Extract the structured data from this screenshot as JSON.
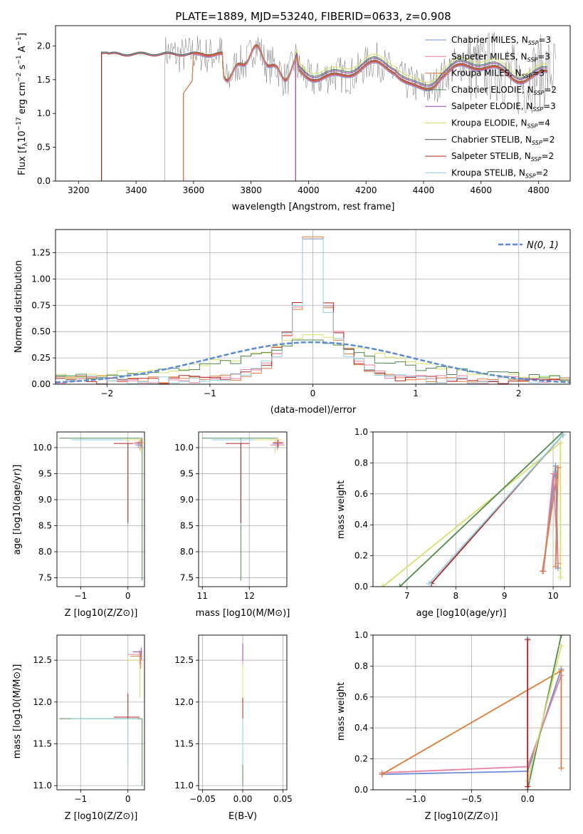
{
  "title": "PLATE=1889, MJD=53240, FIBERID=0633, z=0.908",
  "colors": {
    "chabrier_miles": "#6f8fd6",
    "salpeter_miles": "#e87fa0",
    "kroupa_miles": "#e07b39",
    "chabrier_elodie": "#4f8a4f",
    "salpeter_elodie": "#9b3fb5",
    "kroupa_elodie": "#d9e06a",
    "chabrier_stelib": "#555555",
    "salpeter_stelib": "#b22222",
    "kroupa_stelib": "#8fd0e0",
    "normal": "#5b8bd9",
    "grid": "#b0b0b0"
  },
  "chart_data": [
    {
      "id": "spectrum",
      "type": "line",
      "xlabel": "wavelength [Angstrom, rest frame]",
      "ylabel": "Flux [f_λ 10^-17 erg cm^-2 s^-1 A^-1]",
      "xlim": [
        3120,
        4910
      ],
      "ylim": [
        0,
        2.3
      ],
      "xticks": [
        "3200",
        "3400",
        "3600",
        "3800",
        "4000",
        "4200",
        "4400",
        "4600",
        "4800"
      ],
      "yticks": [
        "0.0",
        "0.5",
        "1.0",
        "1.5",
        "2.0"
      ],
      "grid": false,
      "legend_position": "right",
      "legend": [
        {
          "label": "Chabrier MILES, N",
          "sub": "SSP",
          "value": "=3",
          "color_key": "chabrier_miles"
        },
        {
          "label": "Salpeter MILES, N",
          "sub": "SSP",
          "value": "=3",
          "color_key": "salpeter_miles"
        },
        {
          "label": "Kroupa MILES, N",
          "sub": "SSP",
          "value": "=3",
          "color_key": "kroupa_miles"
        },
        {
          "label": "Chabrier ELODIE, N",
          "sub": "SSP",
          "value": "=2",
          "color_key": "chabrier_elodie"
        },
        {
          "label": "Salpeter ELODIE, N",
          "sub": "SSP",
          "value": "=3",
          "color_key": "salpeter_elodie"
        },
        {
          "label": "Kroupa ELODIE, N",
          "sub": "SSP",
          "value": "=4",
          "color_key": "kroupa_elodie"
        },
        {
          "label": "Chabrier STELIB, N",
          "sub": "SSP",
          "value": "=2",
          "color_key": "chabrier_stelib"
        },
        {
          "label": "Salpeter STELIB, N",
          "sub": "SSP",
          "value": "=2",
          "color_key": "salpeter_stelib"
        },
        {
          "label": "Kroupa STELIB, N",
          "sub": "SSP",
          "value": "=2",
          "color_key": "kroupa_stelib"
        }
      ],
      "model_starts": {
        "stelib": 3280,
        "miles": 3565,
        "elodie": 3955
      },
      "data_start": 3500
    },
    {
      "id": "residuals",
      "type": "line",
      "xlabel": "(data-model)/error",
      "ylabel": "Normed distribution",
      "xlim": [
        -2.5,
        2.5
      ],
      "ylim": [
        0,
        1.47
      ],
      "xticks": [
        -2,
        -1,
        0,
        1,
        2
      ],
      "xtick_labels": [
        "−2",
        "−1",
        "0",
        "1",
        "2"
      ],
      "yticks": [
        "0.00",
        "0.25",
        "0.50",
        "0.75",
        "1.00",
        "1.25"
      ],
      "ytick_values": [
        0,
        0.25,
        0.5,
        0.75,
        1.0,
        1.25
      ],
      "grid": true,
      "legend_position": "top-right",
      "normal_label": "N(0, 1)",
      "bin_width": 0.1,
      "peak_values": [
        1.4,
        1.38,
        0.47,
        0.42
      ]
    },
    {
      "id": "age_vs_Z",
      "type": "scatter",
      "xlabel": "Z [log10(Z/Z⊙)]",
      "ylabel": "age [log10(age/yr)]",
      "xlim": [
        -1.5,
        0.35
      ],
      "ylim": [
        7.33,
        10.3
      ],
      "xticks": [
        -1,
        0
      ],
      "xtick_labels": [
        "−1",
        "0"
      ],
      "yticks": [
        7.5,
        8.0,
        8.5,
        9.0,
        9.5,
        10.0
      ],
      "ytick_labels": [
        "7.5",
        "8.0",
        "8.5",
        "9.0",
        "9.5",
        "10.0"
      ],
      "grid": true
    },
    {
      "id": "age_vs_mass",
      "type": "scatter",
      "xlabel": "mass [log10(M/M⊙)]",
      "xlim": [
        10.92,
        12.8
      ],
      "ylim": [
        7.33,
        10.3
      ],
      "xticks": [
        11,
        12
      ],
      "xtick_labels": [
        "11",
        "12"
      ],
      "yticks": [
        7.5,
        8.0,
        8.5,
        9.0,
        9.5,
        10.0
      ],
      "ytick_labels": [
        "7.5",
        "8.0",
        "8.5",
        "9.0",
        "9.5",
        "10.0"
      ],
      "grid": true
    },
    {
      "id": "weight_vs_age",
      "type": "line",
      "xlabel": "age [log10(age/yr)]",
      "ylabel": "mass weight",
      "xlim": [
        6.3,
        10.35
      ],
      "ylim": [
        0,
        1.0
      ],
      "xticks": [
        7,
        8,
        9,
        10
      ],
      "xtick_labels": [
        "7",
        "8",
        "9",
        "10"
      ],
      "yticks": [
        0,
        0.2,
        0.4,
        0.6,
        0.8,
        1.0
      ],
      "ytick_labels": [
        "0.0",
        "0.2",
        "0.4",
        "0.6",
        "0.8",
        "1.0"
      ],
      "grid": true,
      "series": [
        {
          "color_key": "kroupa_elodie",
          "x": [
            6.5,
            10.15,
            10.15
          ],
          "y": [
            0.0,
            0.93,
            0.06
          ]
        },
        {
          "color_key": "chabrier_elodie",
          "x": [
            6.85,
            10.2
          ],
          "y": [
            0.0,
            1.0
          ]
        },
        {
          "color_key": "salpeter_stelib",
          "x": [
            7.5,
            10.2
          ],
          "y": [
            0.02,
            0.98
          ]
        },
        {
          "color_key": "kroupa_stelib",
          "x": [
            7.45,
            10.2
          ],
          "y": [
            0.02,
            0.98
          ]
        },
        {
          "color_key": "chabrier_miles",
          "x": [
            9.8,
            10.05,
            10.1
          ],
          "y": [
            0.1,
            0.78,
            0.12
          ]
        },
        {
          "color_key": "salpeter_miles",
          "x": [
            9.8,
            10.0,
            10.1
          ],
          "y": [
            0.1,
            0.73,
            0.15
          ]
        },
        {
          "color_key": "kroupa_miles",
          "x": [
            9.78,
            10.1,
            10.05
          ],
          "y": [
            0.1,
            0.77,
            0.13
          ]
        }
      ]
    },
    {
      "id": "mass_vs_Z",
      "type": "scatter",
      "xlabel": "Z [log10(Z/Z⊙)]",
      "ylabel": "mass [log10(M/M⊙)]",
      "xlim": [
        -1.5,
        0.35
      ],
      "ylim": [
        10.95,
        12.8
      ],
      "xticks": [
        -1,
        0
      ],
      "xtick_labels": [
        "−1",
        "0"
      ],
      "yticks": [
        11.0,
        11.5,
        12.0,
        12.5
      ],
      "ytick_labels": [
        "11.0",
        "11.5",
        "12.0",
        "12.5"
      ],
      "grid": true
    },
    {
      "id": "mass_vs_ebv",
      "type": "scatter",
      "xlabel": "E(B-V)",
      "xlim": [
        -0.055,
        0.055
      ],
      "ylim": [
        10.95,
        12.8
      ],
      "xticks": [
        -0.05,
        0.0,
        0.05
      ],
      "xtick_labels": [
        "−0.05",
        "0.00",
        "0.05"
      ],
      "yticks": [
        11.0,
        11.5,
        12.0,
        12.5
      ],
      "ytick_labels": [
        "11.0",
        "11.5",
        "12.0",
        "12.5"
      ],
      "grid": true
    },
    {
      "id": "weight_vs_Z",
      "type": "line",
      "xlabel": "Z [log10(Z/Z⊙)]",
      "ylabel": "mass weight",
      "xlim": [
        -1.38,
        0.38
      ],
      "ylim": [
        0,
        1.0
      ],
      "xticks": [
        -1.0,
        -0.5,
        0.0
      ],
      "xtick_labels": [
        "−1.0",
        "−0.5",
        "0.0"
      ],
      "yticks": [
        0,
        0.2,
        0.4,
        0.6,
        0.8,
        1.0
      ],
      "ytick_labels": [
        "0.0",
        "0.2",
        "0.4",
        "0.6",
        "0.8",
        "1.0"
      ],
      "grid": true,
      "series": [
        {
          "color_key": "chabrier_miles",
          "x": [
            -1.3,
            0.0,
            0.3
          ],
          "y": [
            0.1,
            0.12,
            0.78
          ]
        },
        {
          "color_key": "salpeter_miles",
          "x": [
            -1.3,
            0.0,
            0.3
          ],
          "y": [
            0.11,
            0.15,
            0.74
          ]
        },
        {
          "color_key": "kroupa_miles",
          "x": [
            -1.3,
            0.3,
            0.3
          ],
          "y": [
            0.1,
            0.77,
            0.14
          ]
        },
        {
          "color_key": "chabrier_elodie",
          "x": [
            0.0,
            0.3
          ],
          "y": [
            0.0,
            1.0
          ]
        },
        {
          "color_key": "kroupa_elodie",
          "x": [
            0.0,
            0.3
          ],
          "y": [
            0.06,
            0.93
          ]
        },
        {
          "color_key": "kroupa_stelib",
          "x": [
            0.0,
            0.0
          ],
          "y": [
            0.0,
            0.98
          ]
        },
        {
          "color_key": "salpeter_stelib",
          "x": [
            0.0,
            0.0
          ],
          "y": [
            0.02,
            0.97
          ]
        }
      ]
    }
  ]
}
